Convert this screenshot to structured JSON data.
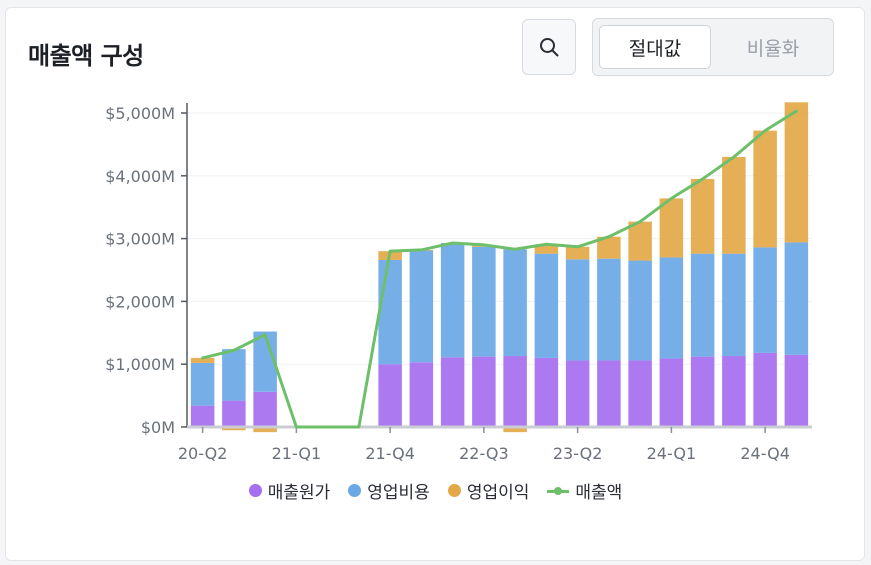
{
  "header": {
    "title": "매출액 구성"
  },
  "toggle": {
    "absolute_label": "절대값",
    "ratio_label": "비율화"
  },
  "legend": [
    {
      "label": "매출원가",
      "color": "#a66ef0",
      "type": "dot"
    },
    {
      "label": "영업비용",
      "color": "#6aa8e6",
      "type": "dot"
    },
    {
      "label": "영업이익",
      "color": "#e3a848",
      "type": "dot"
    },
    {
      "label": "매출액",
      "color": "#6dbf6a",
      "type": "line"
    }
  ],
  "chart_data": {
    "type": "bar",
    "stacked": true,
    "ylabel_format": "$#,###M",
    "ylim": [
      0,
      5000
    ],
    "yticks": [
      "$0M",
      "$1,000M",
      "$2,000M",
      "$3,000M",
      "$4,000M",
      "$5,000M"
    ],
    "ytick_values": [
      0,
      1000,
      2000,
      3000,
      4000,
      5000
    ],
    "categories": [
      "20-Q2",
      "20-Q3",
      "20-Q4",
      "21-Q1",
      "21-Q2",
      "21-Q3",
      "21-Q4",
      "22-Q1",
      "22-Q2",
      "22-Q3",
      "22-Q4",
      "23-Q1",
      "23-Q2",
      "23-Q3",
      "23-Q4",
      "24-Q1",
      "24-Q2",
      "24-Q3",
      "24-Q4",
      "25-Q1"
    ],
    "xtick_labels": [
      "20-Q2",
      "21-Q1",
      "21-Q4",
      "22-Q3",
      "23-Q2",
      "24-Q1",
      "24-Q4"
    ],
    "xtick_indices": [
      0,
      3,
      6,
      9,
      12,
      15,
      18
    ],
    "series": [
      {
        "name": "매출원가",
        "color": "#a66ef0",
        "values": [
          340,
          420,
          560,
          0,
          0,
          0,
          1000,
          1030,
          1110,
          1120,
          1130,
          1100,
          1060,
          1060,
          1060,
          1090,
          1120,
          1130,
          1180,
          1150
        ]
      },
      {
        "name": "영업비용",
        "color": "#6aa8e6",
        "values": [
          680,
          820,
          960,
          0,
          0,
          0,
          1660,
          1780,
          1820,
          1750,
          1700,
          1660,
          1610,
          1620,
          1590,
          1610,
          1640,
          1630,
          1680,
          1790
        ]
      },
      {
        "name": "영업이익",
        "color": "#e3a848",
        "values": [
          80,
          -20,
          -50,
          0,
          0,
          0,
          140,
          10,
          0,
          20,
          -50,
          150,
          200,
          350,
          620,
          940,
          1190,
          1540,
          1860,
          2230
        ]
      }
    ],
    "line": {
      "name": "매출액",
      "color": "#6dbf6a",
      "values": [
        1100,
        1220,
        1470,
        0,
        0,
        0,
        2800,
        2820,
        2930,
        2900,
        2830,
        2910,
        2870,
        3030,
        3270,
        3640,
        3950,
        4300,
        4720,
        5170
      ]
    }
  }
}
